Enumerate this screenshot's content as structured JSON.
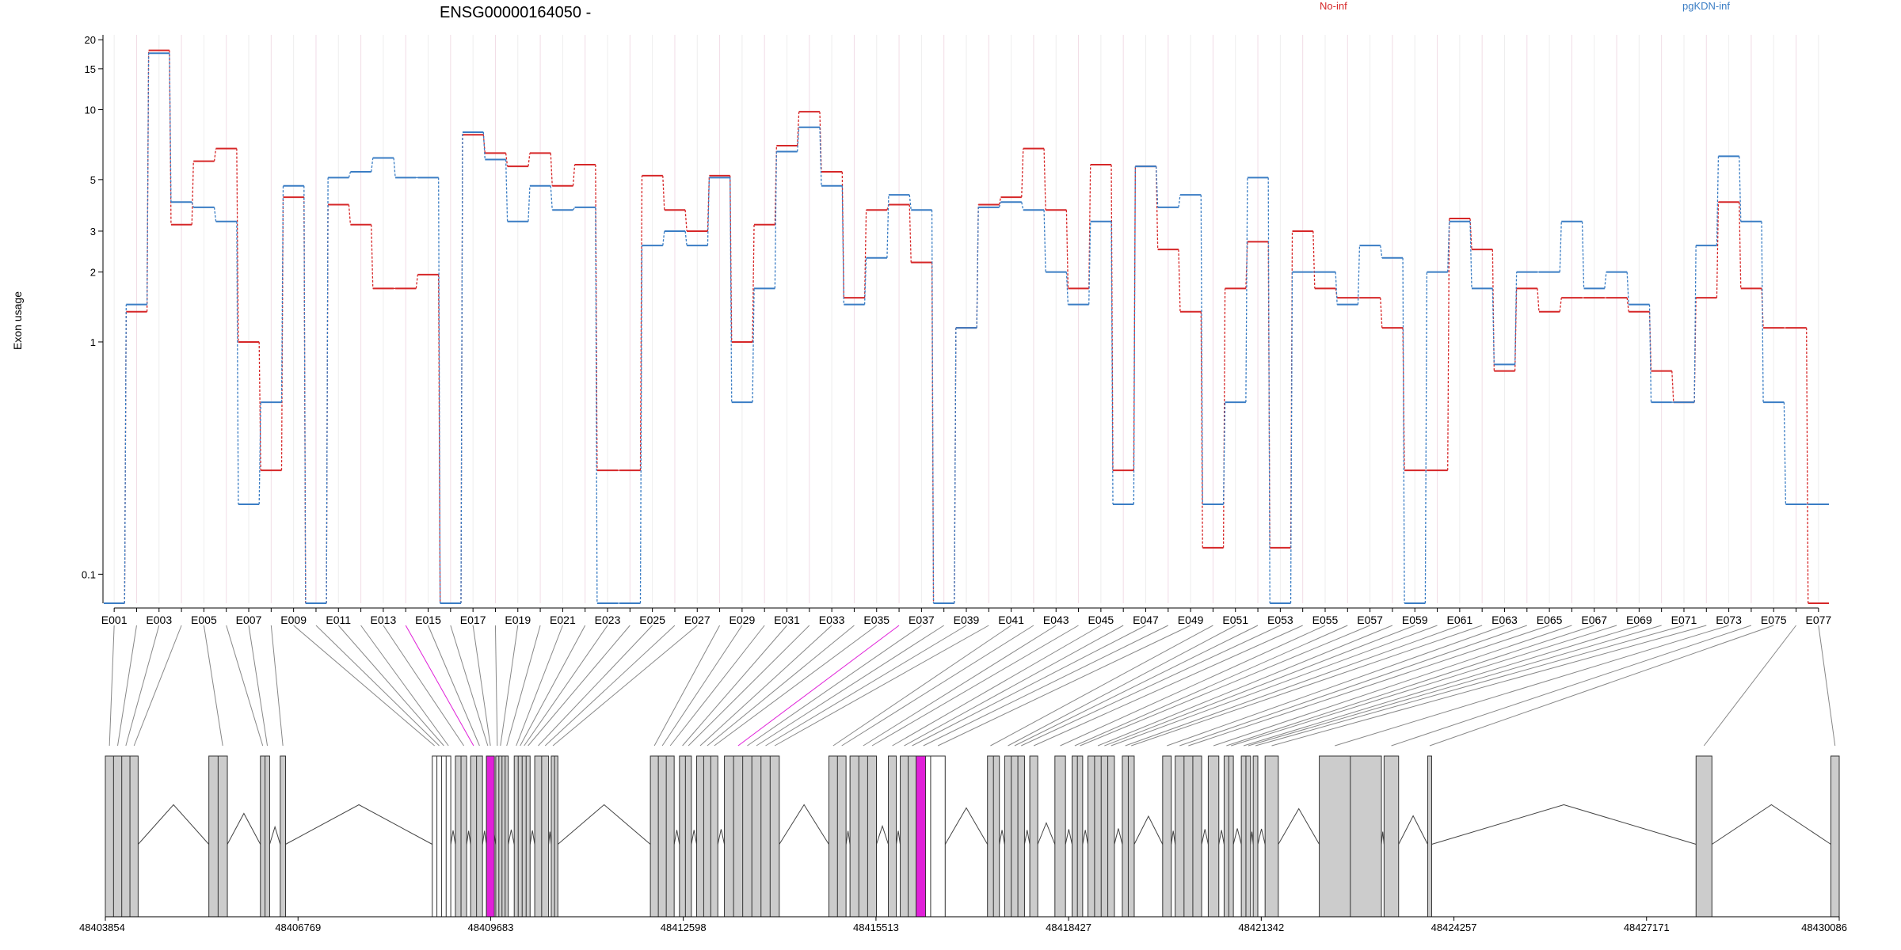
{
  "chart_data": {
    "type": "line",
    "title": "ENSG00000164050 -",
    "ylabel": "Exon usage",
    "yscale": "log",
    "yticks": [
      0.1,
      1,
      2,
      3,
      5,
      10,
      15,
      20
    ],
    "ylim": [
      0.075,
      21
    ],
    "xlabels": [
      "E001",
      "E003",
      "E005",
      "E007",
      "E009",
      "E011",
      "E013",
      "E015",
      "E017",
      "E019",
      "E021",
      "E023",
      "E025",
      "E027",
      "E029",
      "E031",
      "E033",
      "E035",
      "E037",
      "E039",
      "E041",
      "E043",
      "E045",
      "E047",
      "E049",
      "E051",
      "E053",
      "E055",
      "E057",
      "E059",
      "E061",
      "E063",
      "E065",
      "E067",
      "E069",
      "E071",
      "E073",
      "E075",
      "E077"
    ],
    "exons": [
      "E001",
      "E002",
      "E003",
      "E004",
      "E005",
      "E006",
      "E007",
      "E008",
      "E009",
      "E010",
      "E011",
      "E012",
      "E013",
      "E014",
      "E015",
      "E016",
      "E017",
      "E018",
      "E019",
      "E020",
      "E021",
      "E022",
      "E023",
      "E024",
      "E025",
      "E026",
      "E027",
      "E028",
      "E029",
      "E030",
      "E031",
      "E032",
      "E033",
      "E034",
      "E035",
      "E036",
      "E037",
      "E038",
      "E039",
      "E040",
      "E041",
      "E042",
      "E043",
      "E044",
      "E045",
      "E046",
      "E047",
      "E048",
      "E049",
      "E050",
      "E051",
      "E052",
      "E053",
      "E054",
      "E055",
      "E056",
      "E057",
      "E058",
      "E059",
      "E060",
      "E061",
      "E062",
      "E063",
      "E064",
      "E065",
      "E066",
      "E067",
      "E068",
      "E069",
      "E070",
      "E071",
      "E072",
      "E073",
      "E074",
      "E075",
      "E076",
      "E077"
    ],
    "series": [
      {
        "name": "No-inf",
        "color": "#d62728",
        "values": [
          0.075,
          1.35,
          18,
          3.2,
          6,
          6.8,
          1,
          0.28,
          4.2,
          0.075,
          3.9,
          3.2,
          1.7,
          1.7,
          1.95,
          0.075,
          7.8,
          6.5,
          5.7,
          6.5,
          4.7,
          5.8,
          0.28,
          0.28,
          5.2,
          3.7,
          3,
          5.2,
          1,
          3.2,
          7,
          9.8,
          5.4,
          1.55,
          3.7,
          3.9,
          2.2,
          0.075,
          1.15,
          3.9,
          4.2,
          6.8,
          3.7,
          1.7,
          5.8,
          0.28,
          5.7,
          2.5,
          1.35,
          0.13,
          1.7,
          2.7,
          0.13,
          3,
          1.7,
          1.55,
          1.55,
          1.15,
          0.28,
          0.28,
          3.4,
          2.5,
          0.75,
          1.7,
          1.35,
          1.55,
          1.55,
          1.55,
          1.35,
          0.75,
          0.55,
          1.55,
          4,
          1.7,
          1.15,
          1.15,
          0.075
        ]
      },
      {
        "name": "pgKDN-inf",
        "color": "#3a7dc4",
        "values": [
          0.075,
          1.45,
          17.5,
          4,
          3.8,
          3.3,
          0.2,
          0.55,
          4.7,
          0.075,
          5.1,
          5.4,
          6.2,
          5.1,
          5.1,
          0.075,
          8,
          6.1,
          3.3,
          4.7,
          3.7,
          3.8,
          0.075,
          0.075,
          2.6,
          3,
          2.6,
          5.1,
          0.55,
          1.7,
          6.6,
          8.4,
          4.7,
          1.45,
          2.3,
          4.3,
          3.7,
          0.075,
          1.15,
          3.8,
          4,
          3.7,
          2,
          1.45,
          3.3,
          0.2,
          5.7,
          3.8,
          4.3,
          0.2,
          0.55,
          5.1,
          0.075,
          2,
          2,
          1.45,
          2.6,
          2.3,
          0.075,
          2,
          3.3,
          1.7,
          0.8,
          2,
          2,
          3.3,
          1.7,
          2,
          1.45,
          0.55,
          0.55,
          2.6,
          6.3,
          3.3,
          0.55,
          0.2,
          0.2
        ]
      }
    ],
    "coordinates": [
      "48403854",
      "48406769",
      "48409683",
      "48412598",
      "48415513",
      "48418427",
      "48421342",
      "48424257",
      "48427171",
      "48430086"
    ],
    "highlight_exons": [
      "E014",
      "E036"
    ],
    "exon_fill": "#cccccc",
    "highlight_color": "#e020d8"
  }
}
